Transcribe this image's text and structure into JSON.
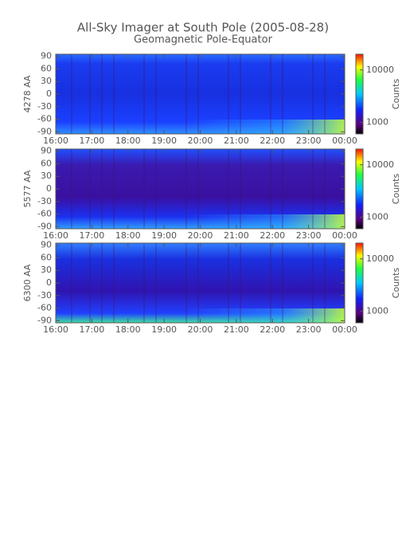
{
  "chart_data": [
    {
      "type": "heatmap",
      "title": "All-Sky Imager at South Pole (2005-08-28)",
      "subtitle": "Geomagnetic Pole-Equator",
      "ylabel": "4278 AA",
      "xlim": [
        16,
        24
      ],
      "xticks": [
        {
          "value": 16,
          "label": "16:00"
        },
        {
          "value": 17,
          "label": "17:00"
        },
        {
          "value": 18,
          "label": "18:00"
        },
        {
          "value": 19,
          "label": "19:00"
        },
        {
          "value": 20,
          "label": "20:00"
        },
        {
          "value": 21,
          "label": "21:00"
        },
        {
          "value": 22,
          "label": "22:00"
        },
        {
          "value": 23,
          "label": "23:00"
        },
        {
          "value": 24,
          "label": "00:00"
        }
      ],
      "ylim": [
        -95,
        95
      ],
      "yticks": [
        90,
        60,
        30,
        0,
        -30,
        -60,
        -90
      ],
      "zlabel": "Counts",
      "zlog": true,
      "zlim": [
        600,
        20000
      ],
      "zticks": [
        1000,
        10000
      ]
    },
    {
      "type": "heatmap",
      "ylabel": "5577 AA",
      "xlim": [
        16,
        24
      ],
      "xticks": [
        {
          "value": 16,
          "label": "16:00"
        },
        {
          "value": 17,
          "label": "17:00"
        },
        {
          "value": 18,
          "label": "18:00"
        },
        {
          "value": 19,
          "label": "19:00"
        },
        {
          "value": 20,
          "label": "20:00"
        },
        {
          "value": 21,
          "label": "21:00"
        },
        {
          "value": 22,
          "label": "22:00"
        },
        {
          "value": 23,
          "label": "23:00"
        },
        {
          "value": 24,
          "label": "00:00"
        }
      ],
      "ylim": [
        -95,
        95
      ],
      "yticks": [
        90,
        60,
        30,
        0,
        -30,
        -60,
        -90
      ],
      "zlabel": "Counts",
      "zlog": true,
      "zlim": [
        600,
        20000
      ],
      "zticks": [
        1000,
        10000
      ]
    },
    {
      "type": "heatmap",
      "ylabel": "6300 AA",
      "xlim": [
        16,
        24
      ],
      "xticks": [
        {
          "value": 16,
          "label": "16:00"
        },
        {
          "value": 17,
          "label": "17:00"
        },
        {
          "value": 18,
          "label": "18:00"
        },
        {
          "value": 19,
          "label": "19:00"
        },
        {
          "value": 20,
          "label": "20:00"
        },
        {
          "value": 21,
          "label": "21:00"
        },
        {
          "value": 22,
          "label": "22:00"
        },
        {
          "value": 23,
          "label": "23:00"
        },
        {
          "value": 24,
          "label": "00:00"
        }
      ],
      "ylim": [
        -95,
        95
      ],
      "yticks": [
        90,
        60,
        30,
        0,
        -30,
        -60,
        -90
      ],
      "zlabel": "Counts",
      "zlog": true,
      "zlim": [
        600,
        20000
      ],
      "zticks": [
        1000,
        10000
      ]
    }
  ]
}
